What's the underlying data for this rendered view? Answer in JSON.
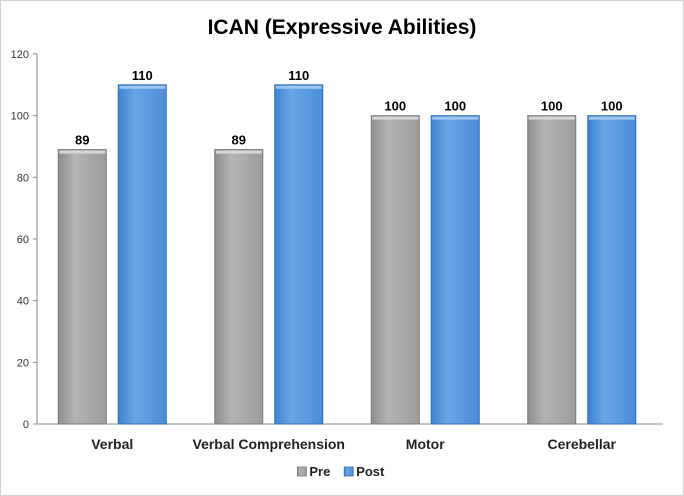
{
  "chart_data": {
    "type": "bar",
    "title": "ICAN (Expressive Abilities)",
    "categories": [
      "Verbal",
      "Verbal Comprehension",
      "Motor",
      "Cerebellar"
    ],
    "series": [
      {
        "name": "Pre",
        "values": [
          89,
          89,
          100,
          100
        ],
        "color": "#a8a8a8"
      },
      {
        "name": "Post",
        "values": [
          110,
          110,
          100,
          100
        ],
        "color": "#5b9bd5"
      }
    ],
    "ylim": [
      0,
      120
    ],
    "yticks": [
      "0",
      "20",
      "40",
      "60",
      "80",
      "100",
      "120"
    ],
    "grid": false,
    "legend_position": "bottom"
  }
}
